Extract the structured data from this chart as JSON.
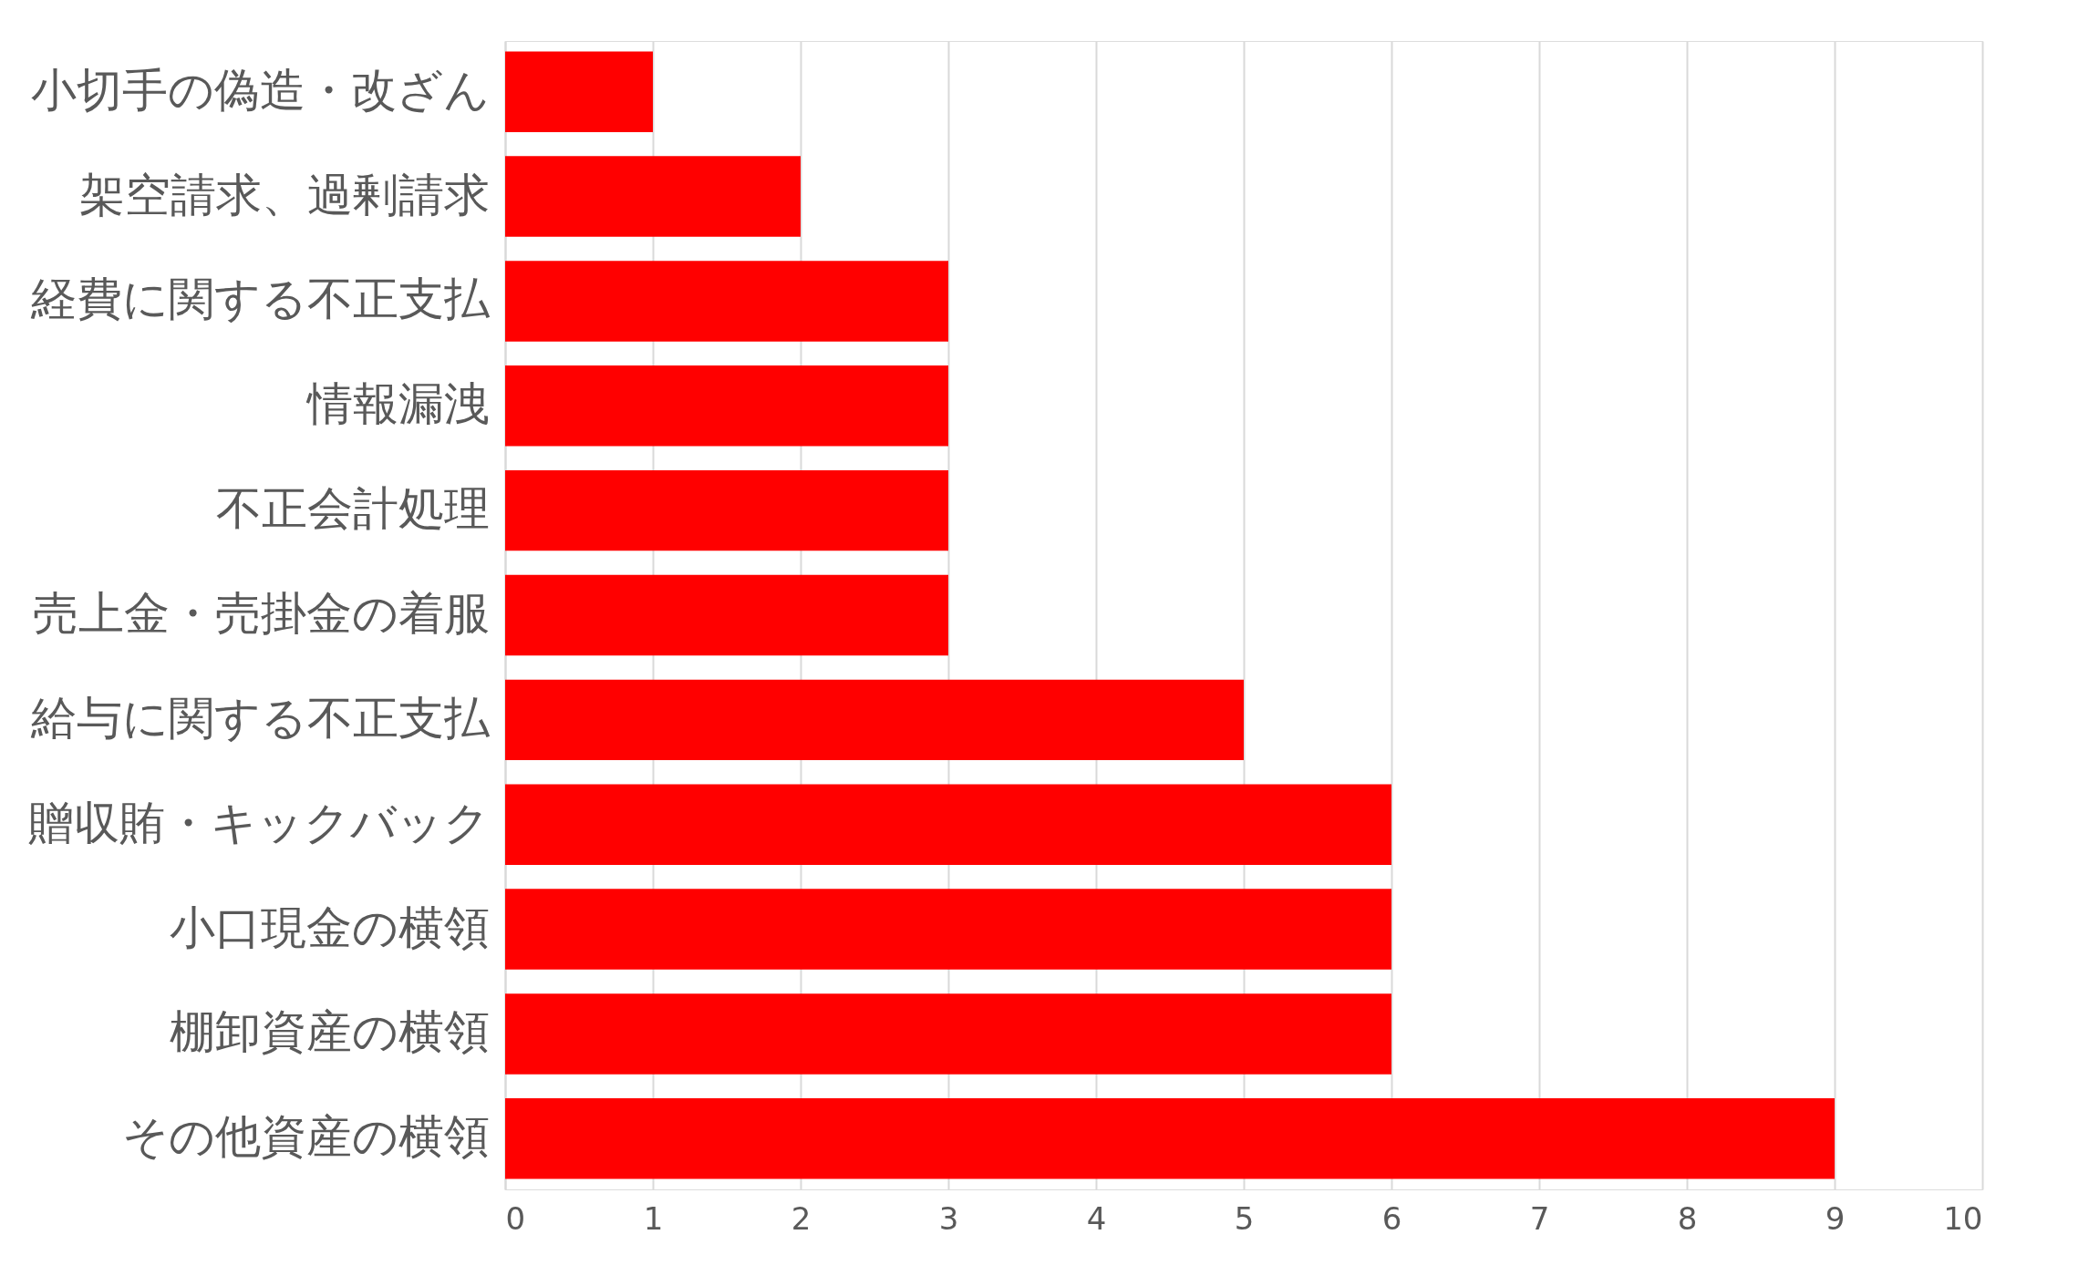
{
  "chart_data": {
    "type": "bar",
    "orientation": "horizontal",
    "categories": [
      "小切手の偽造・改ざん",
      "架空請求、過剰請求",
      "経費に関する不正支払",
      "情報漏洩",
      "不正会計処理",
      "売上金・売掛金の着服",
      "給与に関する不正支払",
      "贈収賄・キックバック",
      "小口現金の横領",
      "棚卸資産の横領",
      "その他資産の横領"
    ],
    "values": [
      1,
      2,
      3,
      3,
      3,
      3,
      5,
      6,
      6,
      6,
      9
    ],
    "color": "#ff0000",
    "xlim": [
      0,
      10
    ],
    "xticks": [
      0,
      1,
      2,
      3,
      4,
      5,
      6,
      7,
      8,
      9,
      10
    ],
    "grid": "x"
  }
}
